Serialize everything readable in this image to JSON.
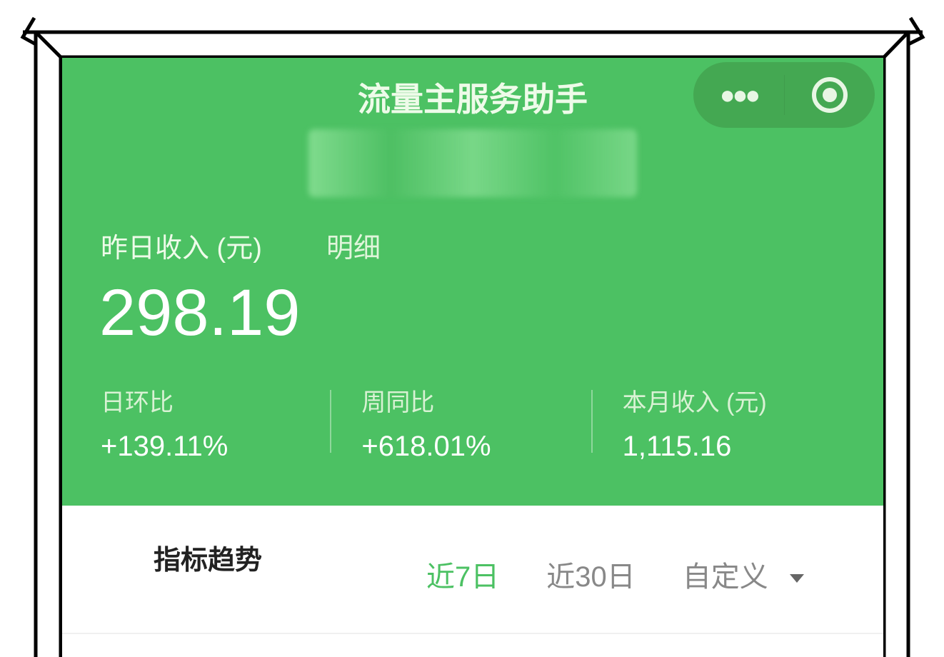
{
  "header": {
    "title": "流量主服务助手",
    "more_icon": "more-dots-icon",
    "close_icon": "target-circle-icon"
  },
  "summary": {
    "label": "昨日收入 (元)",
    "detail_link": "明细",
    "value": "298.19",
    "stats": [
      {
        "label": "日环比",
        "value": "+139.11%"
      },
      {
        "label": "周同比",
        "value": "+618.01%"
      },
      {
        "label": "本月收入 (元)",
        "value": "1,115.16"
      }
    ]
  },
  "trend": {
    "title": "指标趋势",
    "tabs": [
      {
        "label": "近7日",
        "active": true
      },
      {
        "label": "近30日",
        "active": false
      },
      {
        "label": "自定义",
        "active": false
      }
    ]
  },
  "colors": {
    "brand_green": "#4cc163",
    "capsule": "#44a852"
  }
}
